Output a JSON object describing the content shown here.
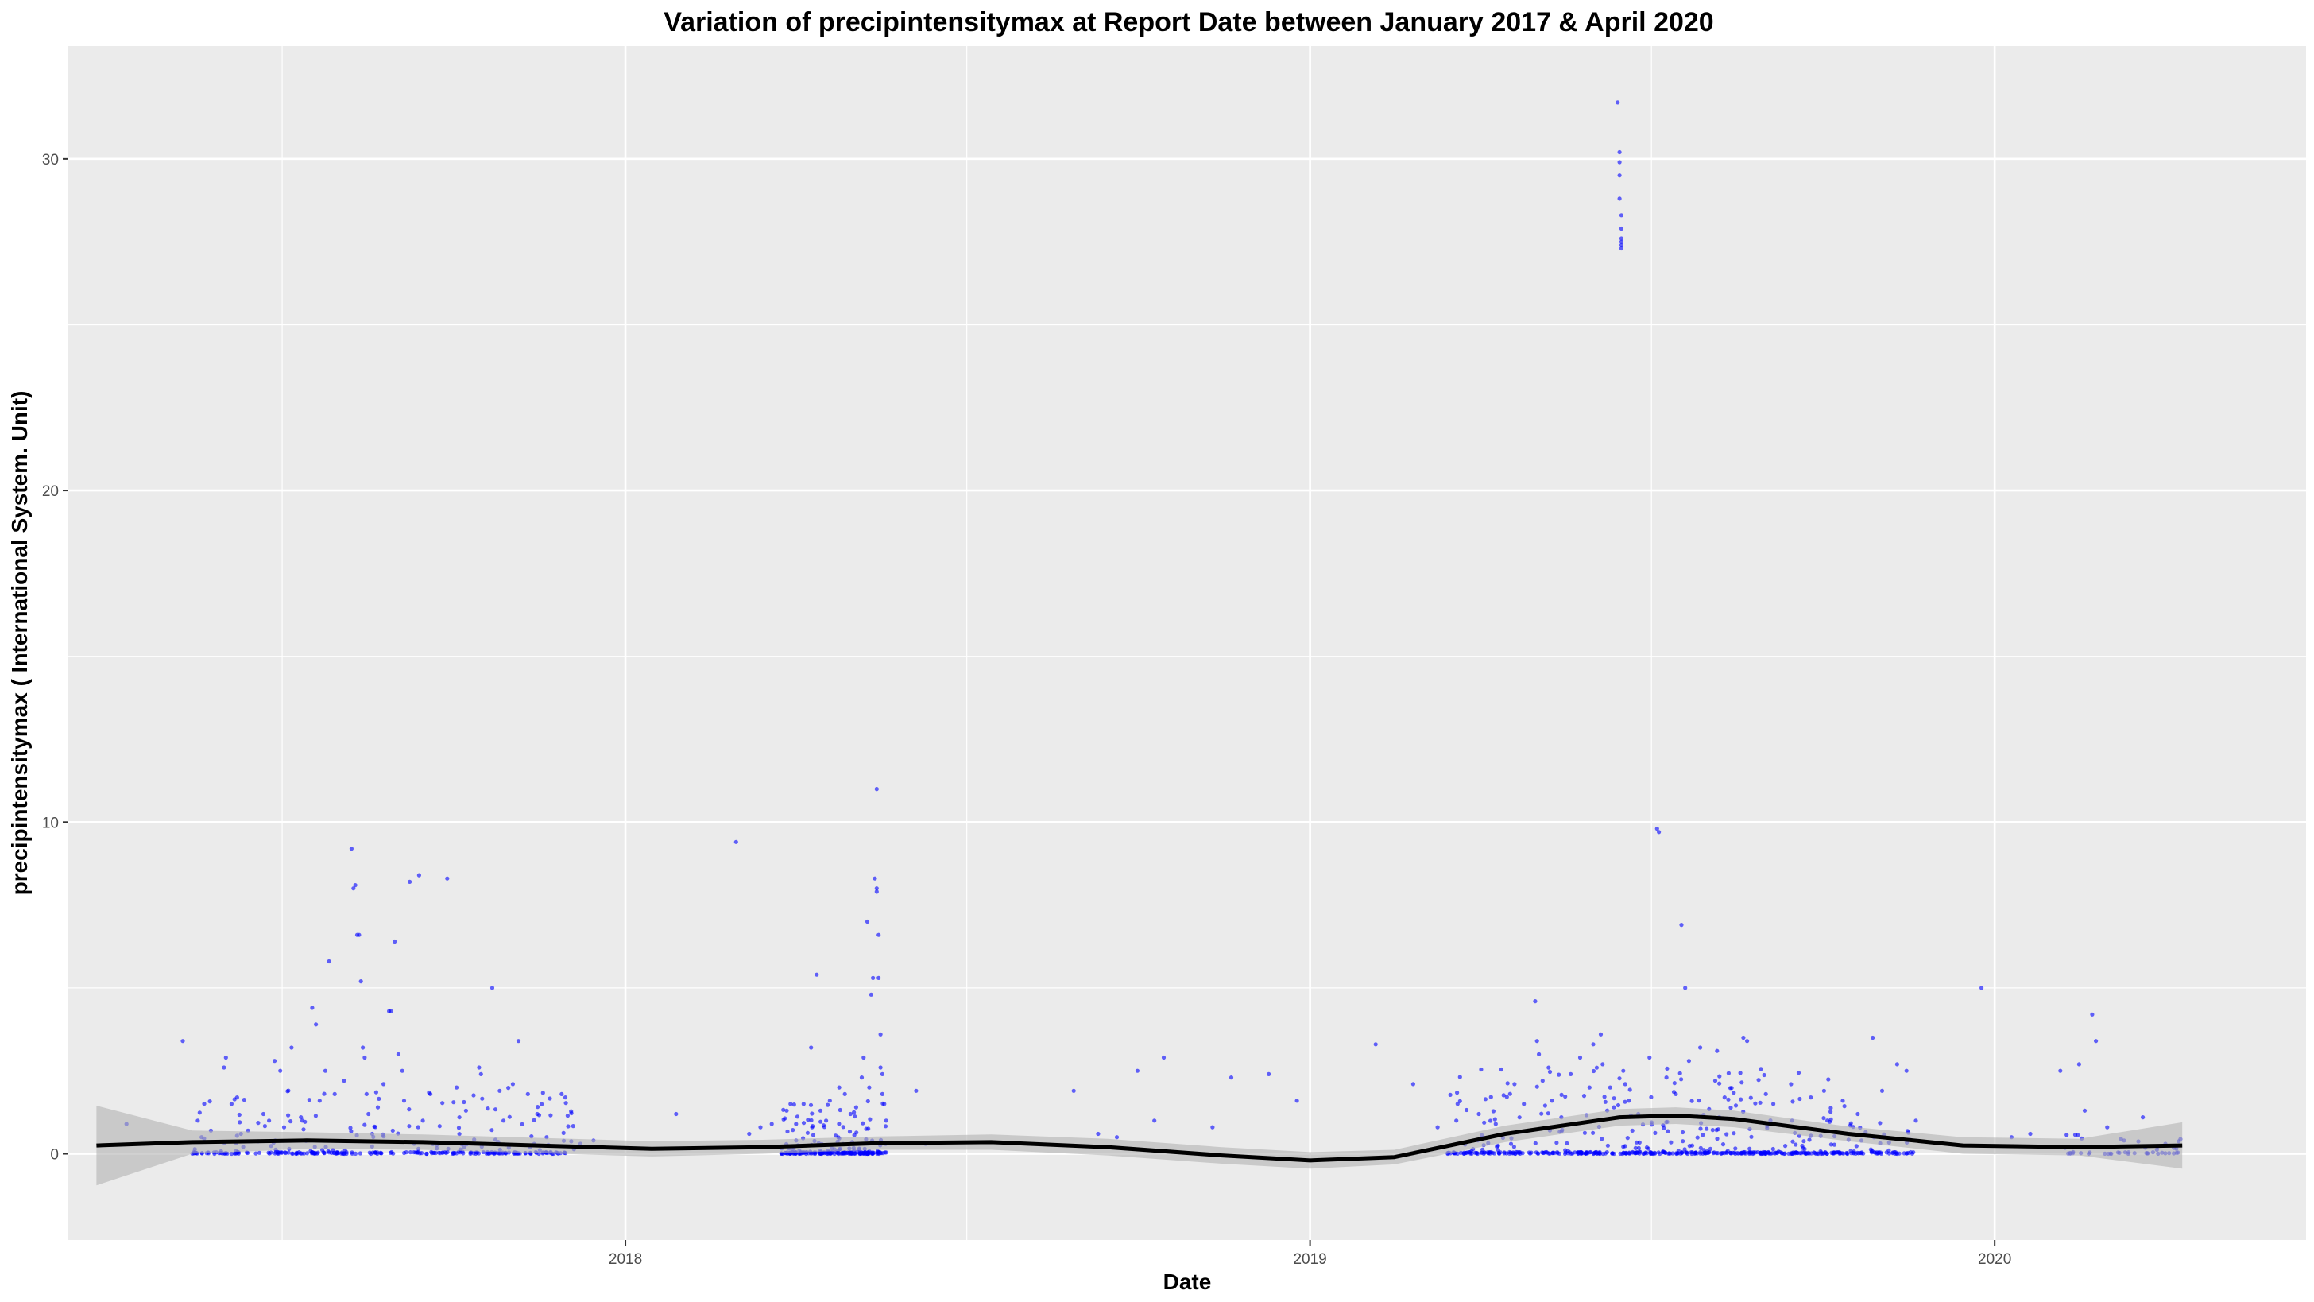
{
  "chart_data": {
    "type": "scatter",
    "title": "Variation of  precipintensitymax  at Report Date between January 2017 & April 2020",
    "xlabel": "Date",
    "ylabel": "precipintensitymax ( International System. Unit)",
    "x_axis_type": "date",
    "xlim": [
      "2017-03-10",
      "2020-06-15"
    ],
    "ylim": [
      -2.6,
      33.4
    ],
    "x_ticks": [
      {
        "date": "2018-01-01",
        "label": "2018"
      },
      {
        "date": "2019-01-01",
        "label": "2019"
      },
      {
        "date": "2020-01-01",
        "label": "2020"
      }
    ],
    "x_minor_breaks": [
      "2017-07-02",
      "2018-07-02",
      "2019-07-02",
      "2020-07-02"
    ],
    "y_ticks": [
      0,
      10,
      20,
      30
    ],
    "y_minor_breaks": [
      5,
      15,
      25
    ],
    "grid": true,
    "legend": "none",
    "colors": {
      "panel": "#ebebeb",
      "grid": "#ffffff",
      "points": "#0000ff",
      "smooth_line": "#000000",
      "confidence_band": "#b3b3b3"
    },
    "series": [
      {
        "kind": "points",
        "points": [
          [
            "2017-04-10",
            0.9
          ],
          [
            "2017-05-10",
            3.4
          ],
          [
            "2017-05-18",
            1.0
          ],
          [
            "2017-05-20",
            0.5
          ],
          [
            "2017-05-25",
            0.7
          ],
          [
            "2017-06-01",
            2.6
          ],
          [
            "2017-06-02",
            2.9
          ],
          [
            "2017-06-05",
            1.5
          ],
          [
            "2017-06-08",
            1.7
          ],
          [
            "2017-06-10",
            0.6
          ],
          [
            "2017-06-22",
            1.2
          ],
          [
            "2017-06-25",
            1.0
          ],
          [
            "2017-06-28",
            2.8
          ],
          [
            "2017-07-01",
            2.5
          ],
          [
            "2017-07-03",
            0.8
          ],
          [
            "2017-07-07",
            3.2
          ],
          [
            "2017-07-12",
            1.1
          ],
          [
            "2017-07-18",
            4.4
          ],
          [
            "2017-07-20",
            3.9
          ],
          [
            "2017-07-22",
            1.6
          ],
          [
            "2017-07-25",
            2.5
          ],
          [
            "2017-07-27",
            5.8
          ],
          [
            "2017-07-30",
            1.8
          ],
          [
            "2017-08-04",
            2.2
          ],
          [
            "2017-08-08",
            9.2
          ],
          [
            "2017-08-09",
            8.0
          ],
          [
            "2017-08-10",
            8.1
          ],
          [
            "2017-08-11",
            6.6
          ],
          [
            "2017-08-12",
            6.6
          ],
          [
            "2017-08-13",
            5.2
          ],
          [
            "2017-08-14",
            3.2
          ],
          [
            "2017-08-15",
            2.9
          ],
          [
            "2017-08-16",
            1.8
          ],
          [
            "2017-08-17",
            1.2
          ],
          [
            "2017-08-19",
            0.6
          ],
          [
            "2017-08-22",
            1.4
          ],
          [
            "2017-08-25",
            2.1
          ],
          [
            "2017-08-28",
            4.3
          ],
          [
            "2017-08-29",
            4.3
          ],
          [
            "2017-08-31",
            6.4
          ],
          [
            "2017-09-02",
            3.0
          ],
          [
            "2017-09-04",
            2.5
          ],
          [
            "2017-09-05",
            1.6
          ],
          [
            "2017-09-08",
            8.2
          ],
          [
            "2017-09-13",
            8.4
          ],
          [
            "2017-09-15",
            1.0
          ],
          [
            "2017-09-19",
            1.8
          ],
          [
            "2017-09-28",
            8.3
          ],
          [
            "2017-10-03",
            2.0
          ],
          [
            "2017-10-08",
            1.3
          ],
          [
            "2017-10-15",
            2.6
          ],
          [
            "2017-10-16",
            2.4
          ],
          [
            "2017-10-22",
            5.0
          ],
          [
            "2017-10-28",
            1.0
          ],
          [
            "2017-11-02",
            2.1
          ],
          [
            "2017-11-05",
            3.4
          ],
          [
            "2017-11-10",
            1.8
          ],
          [
            "2017-11-15",
            1.2
          ],
          [
            "2017-11-20",
            0.5
          ],
          [
            "2017-11-28",
            1.8
          ],
          [
            "2017-11-30",
            1.7
          ],
          [
            "2017-12-08",
            0.3
          ],
          [
            "2017-12-15",
            0.4
          ],
          [
            "2018-01-28",
            1.2
          ],
          [
            "2018-03-08",
            0.6
          ],
          [
            "2018-03-14",
            0.8
          ],
          [
            "2018-03-20",
            0.9
          ],
          [
            "2018-03-28",
            1.3
          ],
          [
            "2018-03-30",
            1.5
          ],
          [
            "2018-04-02",
            0.9
          ],
          [
            "2018-04-06",
            1.5
          ],
          [
            "2018-04-10",
            3.2
          ],
          [
            "2018-04-13",
            5.4
          ],
          [
            "2018-04-15",
            1.3
          ],
          [
            "2018-04-18",
            1.0
          ],
          [
            "2018-04-20",
            1.6
          ],
          [
            "2018-04-25",
            2.0
          ],
          [
            "2018-04-28",
            1.8
          ],
          [
            "2018-05-01",
            1.2
          ],
          [
            "2018-05-04",
            1.4
          ],
          [
            "2018-05-07",
            2.3
          ],
          [
            "2018-05-08",
            2.9
          ],
          [
            "2018-05-10",
            7.0
          ],
          [
            "2018-05-11",
            2.0
          ],
          [
            "2018-05-12",
            4.8
          ],
          [
            "2018-05-13",
            5.3
          ],
          [
            "2018-05-14",
            8.3
          ],
          [
            "2018-05-15",
            11.0
          ],
          [
            "2018-05-15",
            8.0
          ],
          [
            "2018-05-15",
            7.9
          ],
          [
            "2018-05-16",
            6.6
          ],
          [
            "2018-05-16",
            5.3
          ],
          [
            "2018-05-17",
            3.6
          ],
          [
            "2018-05-17",
            2.6
          ],
          [
            "2018-05-18",
            2.4
          ],
          [
            "2018-05-18",
            1.8
          ],
          [
            "2018-05-19",
            1.5
          ],
          [
            "2018-05-20",
            1.0
          ],
          [
            "2018-06-05",
            1.9
          ],
          [
            "2018-06-10",
            0.3
          ],
          [
            "2018-03-01",
            9.4
          ],
          [
            "2018-08-28",
            1.9
          ],
          [
            "2018-09-10",
            0.6
          ],
          [
            "2018-09-20",
            0.5
          ],
          [
            "2018-10-01",
            2.5
          ],
          [
            "2018-10-10",
            1.0
          ],
          [
            "2018-10-15",
            2.9
          ],
          [
            "2018-11-10",
            0.8
          ],
          [
            "2018-11-20",
            2.3
          ],
          [
            "2018-12-10",
            2.4
          ],
          [
            "2018-12-25",
            1.6
          ],
          [
            "2019-02-05",
            3.3
          ],
          [
            "2019-02-25",
            2.1
          ],
          [
            "2019-03-10",
            0.8
          ],
          [
            "2019-03-20",
            1.0
          ],
          [
            "2019-04-01",
            1.2
          ],
          [
            "2019-04-10",
            0.9
          ],
          [
            "2019-04-20",
            2.1
          ],
          [
            "2019-04-25",
            1.5
          ],
          [
            "2019-05-01",
            4.6
          ],
          [
            "2019-05-02",
            3.4
          ],
          [
            "2019-05-03",
            3.0
          ],
          [
            "2019-05-05",
            2.2
          ],
          [
            "2019-05-10",
            1.6
          ],
          [
            "2019-05-15",
            1.1
          ],
          [
            "2019-05-20",
            2.4
          ],
          [
            "2019-05-25",
            2.9
          ],
          [
            "2019-05-30",
            2.0
          ],
          [
            "2019-06-01",
            3.3
          ],
          [
            "2019-06-05",
            3.6
          ],
          [
            "2019-06-06",
            2.7
          ],
          [
            "2019-06-10",
            2.0
          ],
          [
            "2019-06-12",
            1.4
          ],
          [
            "2019-06-14",
            31.7
          ],
          [
            "2019-06-15",
            30.2
          ],
          [
            "2019-06-15",
            29.9
          ],
          [
            "2019-06-15",
            29.5
          ],
          [
            "2019-06-15",
            28.8
          ],
          [
            "2019-06-16",
            28.3
          ],
          [
            "2019-06-16",
            27.9
          ],
          [
            "2019-06-16",
            27.6
          ],
          [
            "2019-06-16",
            27.4
          ],
          [
            "2019-06-16",
            27.3
          ],
          [
            "2019-06-16",
            27.5
          ],
          [
            "2019-06-17",
            2.5
          ],
          [
            "2019-06-18",
            2.1
          ],
          [
            "2019-06-20",
            1.6
          ],
          [
            "2019-06-25",
            1.2
          ],
          [
            "2019-07-01",
            2.9
          ],
          [
            "2019-07-05",
            9.8
          ],
          [
            "2019-07-06",
            9.7
          ],
          [
            "2019-07-10",
            2.3
          ],
          [
            "2019-07-15",
            1.8
          ],
          [
            "2019-07-18",
            6.9
          ],
          [
            "2019-07-20",
            5.0
          ],
          [
            "2019-07-22",
            2.8
          ],
          [
            "2019-07-28",
            3.2
          ],
          [
            "2019-08-05",
            2.2
          ],
          [
            "2019-08-06",
            3.1
          ],
          [
            "2019-08-10",
            1.7
          ],
          [
            "2019-08-20",
            3.5
          ],
          [
            "2019-08-22",
            3.4
          ],
          [
            "2019-09-01",
            1.8
          ],
          [
            "2019-09-05",
            1.5
          ],
          [
            "2019-09-15",
            1.0
          ],
          [
            "2019-09-25",
            1.7
          ],
          [
            "2019-10-02",
            1.9
          ],
          [
            "2019-10-12",
            1.6
          ],
          [
            "2019-10-20",
            1.2
          ],
          [
            "2019-10-28",
            3.5
          ],
          [
            "2019-11-02",
            1.9
          ],
          [
            "2019-11-10",
            2.7
          ],
          [
            "2019-11-15",
            2.5
          ],
          [
            "2019-11-20",
            1.0
          ],
          [
            "2019-12-25",
            5.0
          ],
          [
            "2020-01-10",
            0.5
          ],
          [
            "2020-01-20",
            0.6
          ],
          [
            "2020-02-05",
            2.5
          ],
          [
            "2020-02-15",
            2.7
          ],
          [
            "2020-02-18",
            1.3
          ],
          [
            "2020-02-22",
            4.2
          ],
          [
            "2020-02-24",
            3.4
          ],
          [
            "2020-03-01",
            0.8
          ],
          [
            "2020-03-10",
            0.4
          ],
          [
            "2020-03-20",
            1.1
          ],
          [
            "2020-04-01",
            0.3
          ]
        ],
        "dense_ranges": [
          {
            "from": "2017-05-15",
            "to": "2017-12-05",
            "count": 320,
            "ymax": 2.0
          },
          {
            "from": "2018-03-25",
            "to": "2018-05-20",
            "count": 220,
            "ymax": 1.6
          },
          {
            "from": "2019-03-15",
            "to": "2019-10-15",
            "count": 520,
            "ymax": 2.6
          },
          {
            "from": "2019-10-15",
            "to": "2019-11-20",
            "count": 60,
            "ymax": 1.0
          },
          {
            "from": "2020-02-01",
            "to": "2020-04-10",
            "count": 45,
            "ymax": 0.6
          }
        ]
      },
      {
        "kind": "smooth",
        "x": [
          "2017-03-25",
          "2017-05-15",
          "2017-07-15",
          "2017-09-15",
          "2017-11-15",
          "2018-01-15",
          "2018-03-15",
          "2018-05-15",
          "2018-07-15",
          "2018-09-15",
          "2018-11-15",
          "2019-01-01",
          "2019-02-15",
          "2019-04-15",
          "2019-06-15",
          "2019-07-15",
          "2019-08-15",
          "2019-10-15",
          "2019-12-15",
          "2020-02-15",
          "2020-04-10"
        ],
        "y": [
          0.25,
          0.35,
          0.4,
          0.35,
          0.25,
          0.15,
          0.2,
          0.32,
          0.35,
          0.2,
          -0.05,
          -0.2,
          -0.1,
          0.6,
          1.1,
          1.15,
          1.05,
          0.6,
          0.25,
          0.2,
          0.25
        ],
        "lower": [
          -0.95,
          0.0,
          0.15,
          0.12,
          0.02,
          -0.08,
          0.0,
          0.12,
          0.12,
          -0.05,
          -0.3,
          -0.45,
          -0.32,
          0.35,
          0.85,
          0.9,
          0.8,
          0.38,
          0.0,
          -0.05,
          -0.45
        ],
        "upper": [
          1.45,
          0.7,
          0.65,
          0.58,
          0.48,
          0.38,
          0.42,
          0.52,
          0.58,
          0.45,
          0.2,
          0.05,
          0.12,
          0.85,
          1.35,
          1.4,
          1.3,
          0.82,
          0.5,
          0.45,
          0.95
        ]
      }
    ]
  }
}
